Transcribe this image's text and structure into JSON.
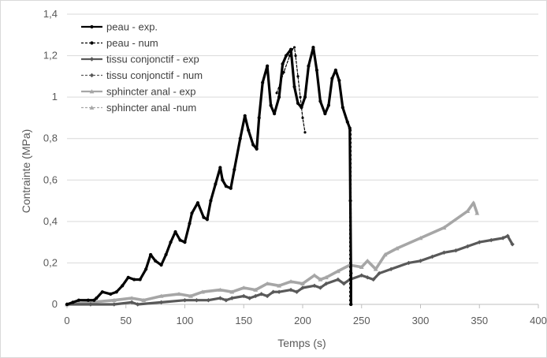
{
  "chart_data": {
    "type": "line",
    "title": "",
    "xlabel": "Temps (s)",
    "ylabel": "Contrainte (MPa)",
    "xlim": [
      0,
      400
    ],
    "ylim": [
      0,
      1.4
    ],
    "x_ticks": [
      "0",
      "50",
      "100",
      "150",
      "200",
      "250",
      "300",
      "350",
      "400"
    ],
    "y_ticks": [
      "0",
      "0,2",
      "0,4",
      "0,6",
      "0,8",
      "1",
      "1,2",
      "1,4"
    ],
    "grid": "horizontal",
    "legend_position": "top-left",
    "series": [
      {
        "name": "peau - exp.",
        "color": "#000000",
        "style": "solid-circle",
        "x": [
          0,
          5,
          10,
          18,
          23,
          25,
          30,
          37,
          42,
          47,
          52,
          57,
          62,
          67,
          71,
          75,
          80,
          84,
          88,
          92,
          96,
          100,
          104,
          106,
          111,
          116,
          119,
          122,
          126,
          130,
          132,
          135,
          139,
          142,
          147,
          151,
          154,
          158,
          161,
          163,
          166,
          170,
          173,
          176,
          180,
          183,
          186,
          190,
          193,
          196,
          199,
          202,
          205,
          209,
          212,
          215,
          219,
          222,
          225,
          228,
          231,
          234,
          238,
          240,
          240.5,
          241,
          241
        ],
        "y": [
          0,
          0.01,
          0.02,
          0.02,
          0.02,
          0.03,
          0.06,
          0.05,
          0.06,
          0.09,
          0.13,
          0.12,
          0.12,
          0.17,
          0.24,
          0.21,
          0.19,
          0.24,
          0.3,
          0.35,
          0.31,
          0.3,
          0.39,
          0.44,
          0.49,
          0.42,
          0.41,
          0.5,
          0.58,
          0.66,
          0.6,
          0.57,
          0.56,
          0.65,
          0.8,
          0.91,
          0.84,
          0.77,
          0.75,
          0.9,
          1.07,
          1.15,
          0.96,
          0.92,
          1.0,
          1.16,
          1.2,
          1.23,
          1.05,
          0.97,
          0.95,
          1.0,
          1.15,
          1.24,
          1.13,
          0.98,
          0.92,
          0.96,
          1.09,
          1.13,
          1.08,
          0.95,
          0.88,
          0.85,
          0.5,
          0.15,
          0.0
        ]
      },
      {
        "name": "peau - num",
        "color": "#000000",
        "style": "dashed-circle",
        "x": [
          178,
          184,
          189,
          191,
          193,
          194,
          196,
          198,
          200,
          202
        ],
        "y": [
          1.02,
          1.12,
          1.2,
          1.23,
          1.24,
          1.2,
          1.1,
          1.0,
          0.9,
          0.83
        ]
      },
      {
        "name": "tissu conjonctif - exp",
        "color": "#595959",
        "style": "solid-diamond",
        "x": [
          0,
          20,
          40,
          55,
          60,
          80,
          100,
          110,
          120,
          130,
          135,
          140,
          150,
          155,
          160,
          165,
          170,
          175,
          180,
          190,
          195,
          200,
          210,
          215,
          220,
          230,
          235,
          240,
          250,
          255,
          260,
          265,
          275,
          290,
          300,
          310,
          320,
          330,
          340,
          350,
          360,
          370,
          374,
          378
        ],
        "y": [
          0,
          0.0,
          0.0,
          0.01,
          0.0,
          0.01,
          0.02,
          0.02,
          0.02,
          0.03,
          0.02,
          0.03,
          0.04,
          0.03,
          0.04,
          0.05,
          0.04,
          0.06,
          0.06,
          0.07,
          0.06,
          0.08,
          0.09,
          0.08,
          0.1,
          0.12,
          0.1,
          0.12,
          0.14,
          0.13,
          0.12,
          0.15,
          0.17,
          0.2,
          0.21,
          0.23,
          0.25,
          0.26,
          0.28,
          0.3,
          0.31,
          0.32,
          0.33,
          0.29
        ]
      },
      {
        "name": "tissu conjonctif - num",
        "color": "#595959",
        "style": "dashed-diamond",
        "x": [],
        "y": []
      },
      {
        "name": "sphincter anal - exp",
        "color": "#a6a6a6",
        "style": "solid-triangle",
        "x": [
          0,
          20,
          40,
          55,
          65,
          80,
          95,
          105,
          115,
          130,
          140,
          150,
          160,
          170,
          180,
          190,
          200,
          210,
          215,
          220,
          230,
          240,
          250,
          255,
          262,
          270,
          280,
          300,
          320,
          340,
          345,
          348
        ],
        "y": [
          0,
          0.01,
          0.02,
          0.03,
          0.02,
          0.04,
          0.05,
          0.04,
          0.06,
          0.07,
          0.06,
          0.08,
          0.07,
          0.1,
          0.09,
          0.11,
          0.1,
          0.14,
          0.12,
          0.13,
          0.16,
          0.19,
          0.18,
          0.21,
          0.17,
          0.24,
          0.27,
          0.32,
          0.37,
          0.45,
          0.49,
          0.44
        ]
      },
      {
        "name": "sphincter anal -num",
        "color": "#a6a6a6",
        "style": "dashed-triangle",
        "x": [],
        "y": []
      }
    ]
  }
}
